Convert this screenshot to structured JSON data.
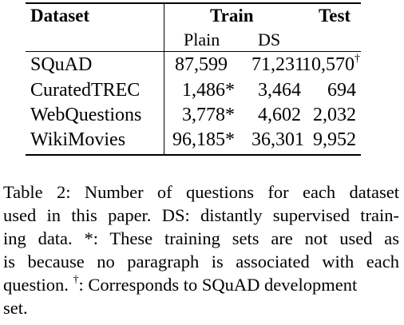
{
  "table": {
    "header": {
      "dataset": "Dataset",
      "train": "Train",
      "test": "Test",
      "plain": "Plain",
      "ds": "DS"
    },
    "rows": [
      {
        "name": "SQuAD",
        "plain": "87,599",
        "ds": "71,231",
        "test": "10,570",
        "test_mark": "†"
      },
      {
        "name": "CuratedTREC",
        "plain": "1,486*",
        "ds": "3,464",
        "test": "694",
        "test_mark": ""
      },
      {
        "name": "WebQuestions",
        "plain": "3,778*",
        "ds": "4,602",
        "test": "2,032",
        "test_mark": ""
      },
      {
        "name": "WikiMovies",
        "plain": "96,185*",
        "ds": "36,301",
        "test": "9,952",
        "test_mark": ""
      }
    ]
  },
  "caption": {
    "line1": "Table 2:   Number of questions for each dataset",
    "line2": "used in this paper.  DS: distantly supervised train-",
    "line3": "ing data.   *:  These training sets are not used as",
    "line4": "is because no paragraph is associated with each",
    "line5_mark": "†",
    "line5_a": "question. ",
    "line5_b": ": Corresponds to SQuAD development",
    "line6": "set."
  }
}
